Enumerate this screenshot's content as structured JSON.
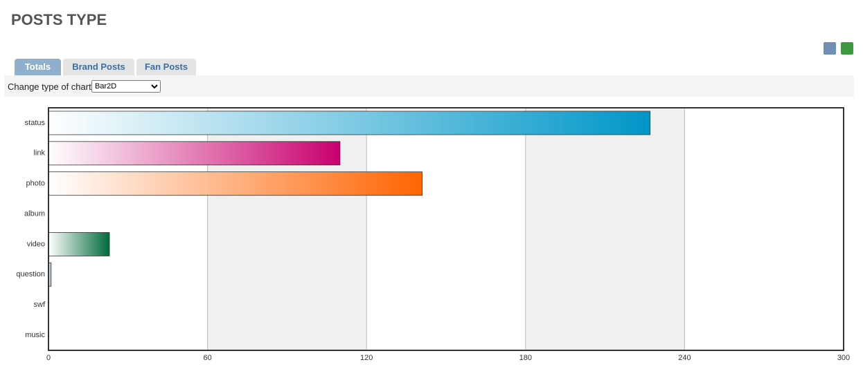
{
  "page": {
    "title": "POSTS TYPE",
    "tabs": [
      "Totals",
      "Brand Posts",
      "Fan Posts"
    ],
    "chart_type_label": "Change type of chart:",
    "chart_type_option": "Bar2D"
  },
  "chart_data": {
    "type": "bar",
    "orientation": "horizontal",
    "categories": [
      "status",
      "link",
      "photo",
      "album",
      "video",
      "question",
      "swf",
      "music"
    ],
    "values": [
      227,
      110,
      141,
      0,
      23,
      1,
      0,
      0
    ],
    "colors": [
      "#0096c8",
      "#c8006e",
      "#ff6400",
      "#8e44ad",
      "#006b3a",
      "#8fa9c4",
      "#999999",
      "#999999"
    ],
    "xlim": [
      0,
      300
    ],
    "xticks": [
      0,
      60,
      120,
      180,
      240,
      300
    ],
    "grid": true
  }
}
